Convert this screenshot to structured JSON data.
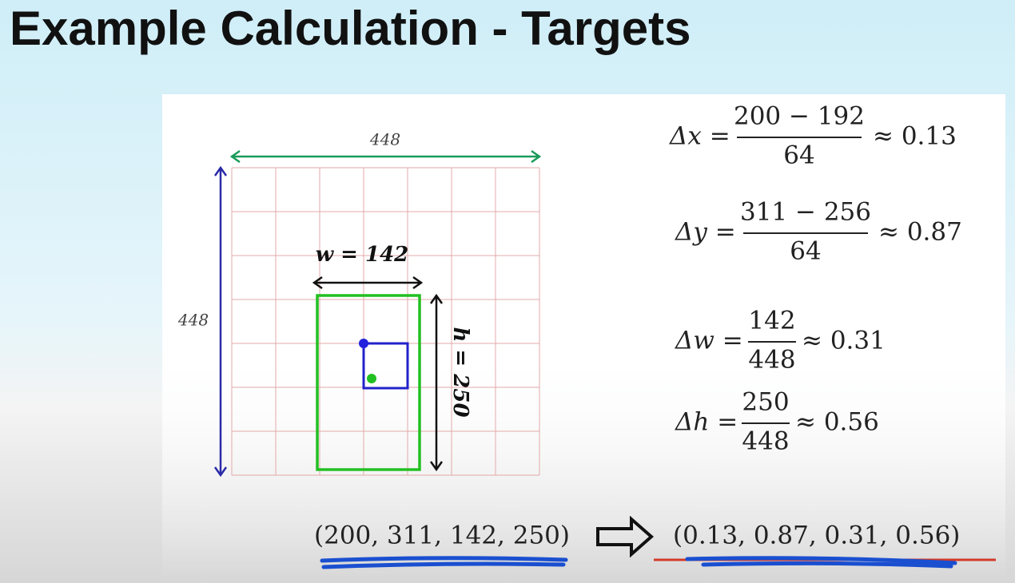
{
  "header": {
    "title": "Example Calculation - Targets"
  },
  "diagram": {
    "top_label": "448",
    "left_label": "448",
    "width_label": "w = 142",
    "height_label": "h = 250"
  },
  "equations": [
    {
      "lhs": "Δx =",
      "numerator": "200 − 192",
      "denominator": "64",
      "result": "≈ 0.13"
    },
    {
      "lhs": "Δy =",
      "numerator": "311 − 256",
      "denominator": "64",
      "result": "≈ 0.87"
    },
    {
      "lhs": "Δw =",
      "numerator": "142",
      "denominator": "448",
      "result": "≈ 0.31"
    },
    {
      "lhs": "Δh =",
      "numerator": "250",
      "denominator": "448",
      "result": "≈ 0.56"
    }
  ],
  "conversion": {
    "input": "(200, 311, 142, 250)",
    "output": "(0.13,  0.87,  0.31,  0.56)"
  }
}
